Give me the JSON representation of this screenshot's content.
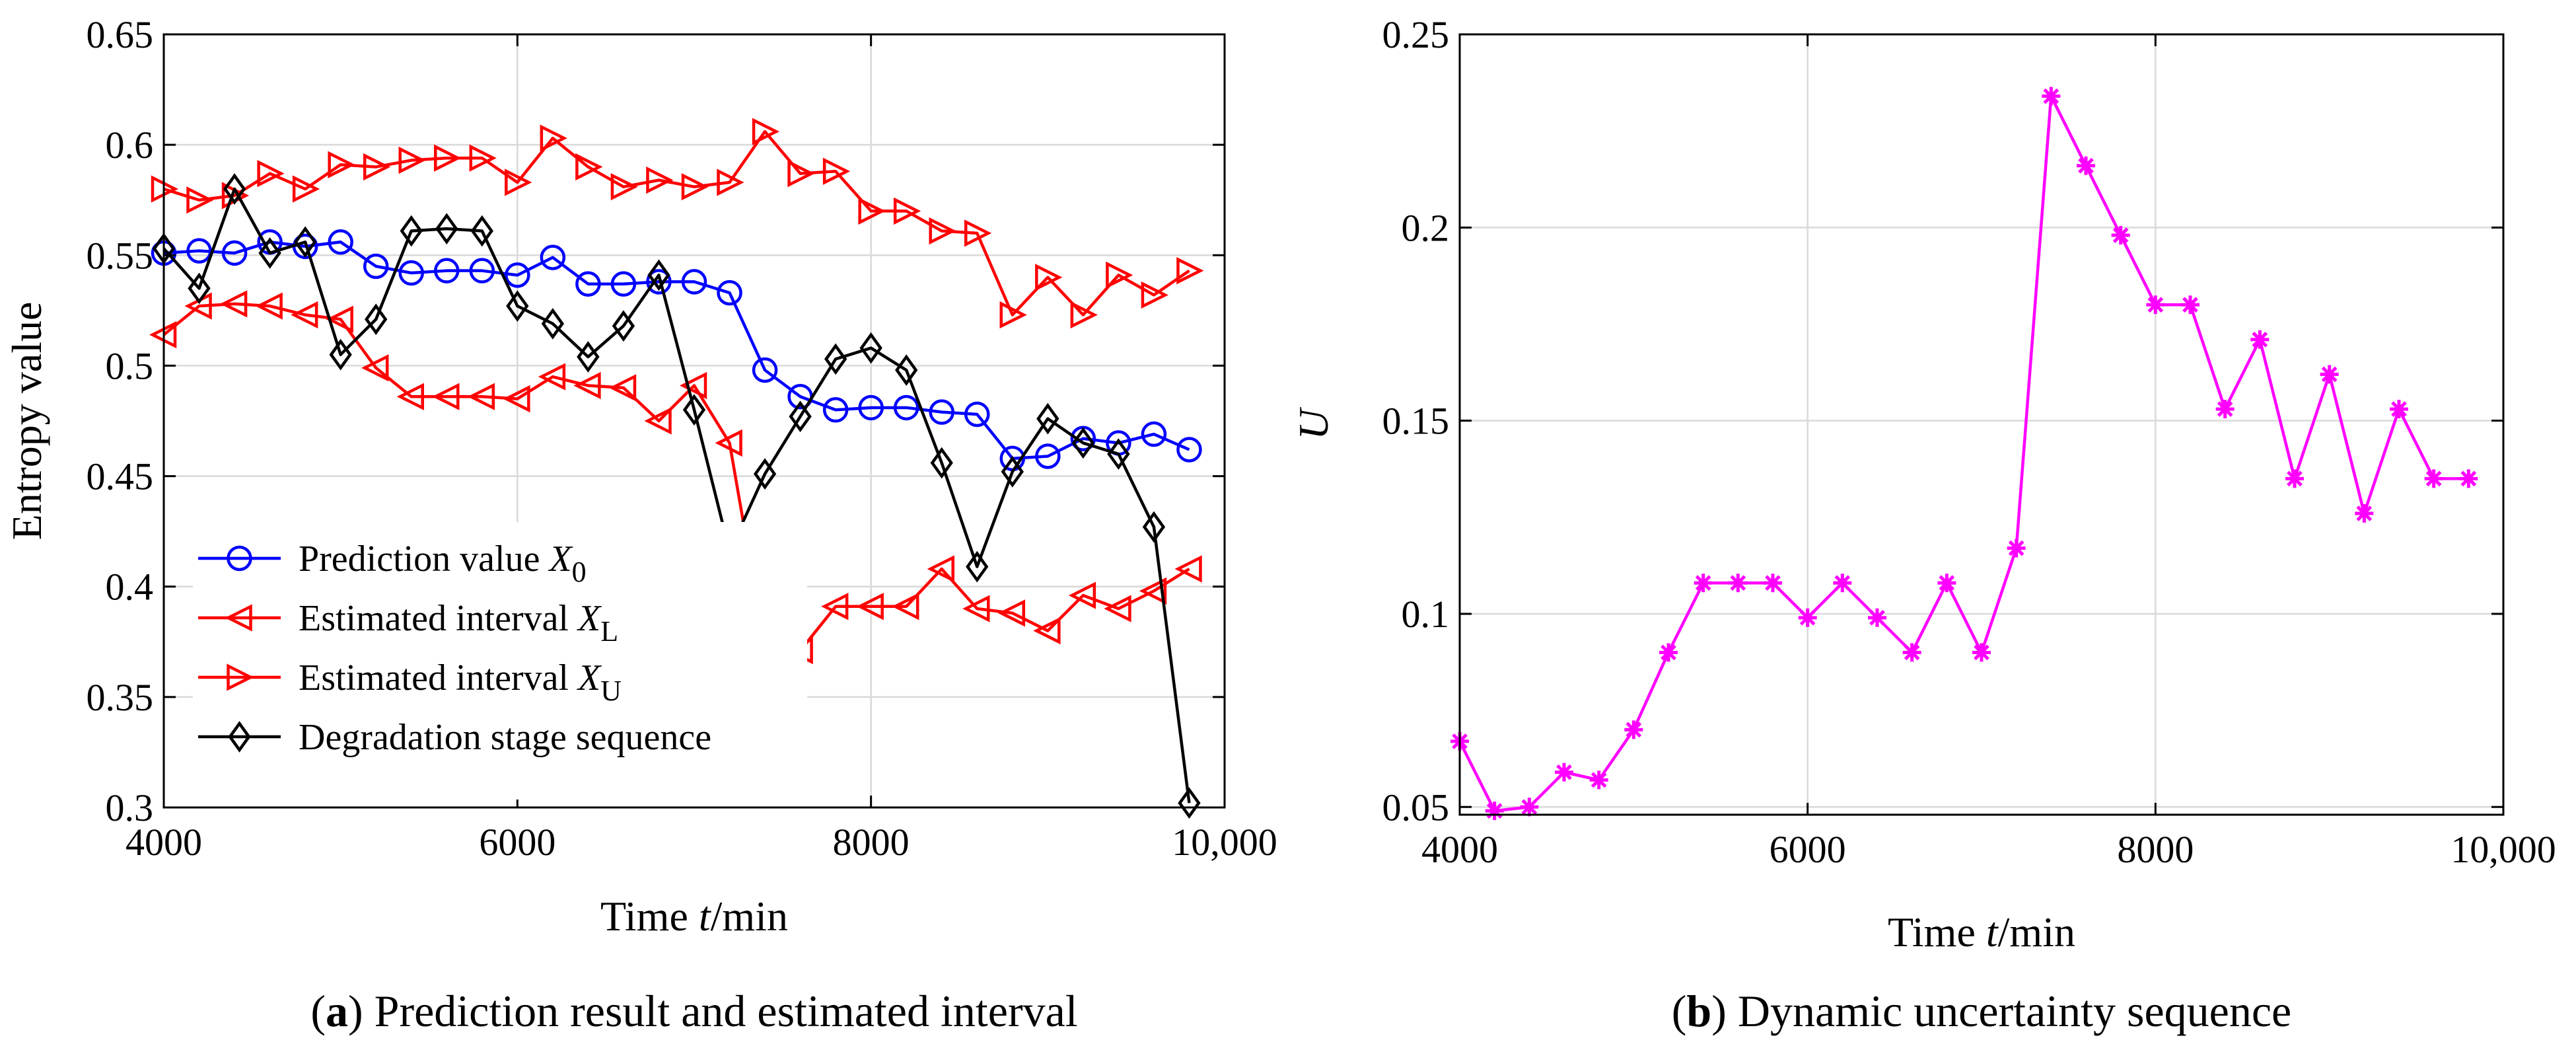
{
  "chart_data": [
    {
      "type": "line",
      "panel_label": "(a)",
      "caption": "Prediction result and estimated interval",
      "xlabel": {
        "prefix": "Time ",
        "var": "t",
        "suffix": "/min"
      },
      "ylabel": "Entropy value",
      "xlim": [
        4000,
        10000
      ],
      "ylim": [
        0.3,
        0.65
      ],
      "xticks": [
        4000,
        6000,
        8000,
        10000
      ],
      "xtick_labels": [
        "4000",
        "6000",
        "8000",
        "10,000"
      ],
      "yticks": [
        0.3,
        0.35,
        0.4,
        0.45,
        0.5,
        0.55,
        0.6,
        0.65
      ],
      "ytick_labels": [
        "0.3",
        "0.35",
        "0.4",
        "0.45",
        "0.5",
        "0.55",
        "0.6",
        "0.65"
      ],
      "grid": true,
      "legend_position": "lower-left",
      "x": [
        4000,
        4200,
        4400,
        4600,
        4800,
        5000,
        5200,
        5400,
        5600,
        5800,
        6000,
        6200,
        6400,
        6600,
        6800,
        7000,
        7200,
        7400,
        7600,
        7800,
        8000,
        8200,
        8400,
        8600,
        8800,
        9000,
        9200,
        9400,
        9600,
        9800
      ],
      "series": [
        {
          "name": "Prediction value",
          "legend_main": "Prediction value ",
          "legend_var": "X",
          "legend_sub": "0",
          "color": "#0000ff",
          "marker": "circle",
          "values": [
            0.551,
            0.552,
            0.551,
            0.556,
            0.554,
            0.556,
            0.545,
            0.542,
            0.543,
            0.543,
            0.541,
            0.549,
            0.537,
            0.537,
            0.538,
            0.538,
            0.533,
            0.498,
            0.486,
            0.48,
            0.481,
            0.481,
            0.479,
            0.478,
            0.458,
            0.459,
            0.467,
            0.465,
            0.469,
            0.462
          ]
        },
        {
          "name": "Estimated interval",
          "legend_main": "Estimated interval ",
          "legend_var": "X",
          "legend_sub": "L",
          "color": "#ff0000",
          "marker": "triangle-left",
          "values": [
            0.514,
            0.527,
            0.528,
            0.527,
            0.523,
            0.521,
            0.499,
            0.486,
            0.486,
            0.486,
            0.485,
            0.495,
            0.491,
            0.49,
            0.475,
            0.491,
            0.465,
            0.373,
            0.371,
            0.391,
            0.391,
            0.391,
            0.408,
            0.39,
            0.388,
            0.38,
            0.396,
            0.39,
            0.398,
            0.408
          ]
        },
        {
          "name": "Estimated interval",
          "legend_main": "Estimated interval ",
          "legend_var": "X",
          "legend_sub": "U",
          "color": "#ff0000",
          "marker": "triangle-right",
          "values": [
            0.58,
            0.575,
            0.577,
            0.587,
            0.58,
            0.591,
            0.59,
            0.593,
            0.594,
            0.594,
            0.583,
            0.603,
            0.59,
            0.581,
            0.584,
            0.581,
            0.583,
            0.606,
            0.587,
            0.588,
            0.57,
            0.57,
            0.561,
            0.56,
            0.523,
            0.54,
            0.523,
            0.541,
            0.532,
            0.543
          ]
        },
        {
          "name": "Degradation stage sequence",
          "legend_main": "Degradation stage sequence",
          "legend_var": "",
          "legend_sub": "",
          "color": "#000000",
          "marker": "diamond",
          "values": [
            0.553,
            0.535,
            0.58,
            0.551,
            0.556,
            0.505,
            0.521,
            0.561,
            0.562,
            0.561,
            0.527,
            0.519,
            0.504,
            0.518,
            0.541,
            0.48,
            0.416,
            0.451,
            0.477,
            0.503,
            0.508,
            0.498,
            0.456,
            0.409,
            0.452,
            0.476,
            0.465,
            0.46,
            0.427,
            0.302
          ]
        }
      ]
    },
    {
      "type": "line",
      "panel_label": "(b)",
      "caption": "Dynamic uncertainty sequence",
      "xlabel": {
        "prefix": "Time ",
        "var": "t",
        "suffix": "/min"
      },
      "ylabel": "U",
      "xlim": [
        4000,
        10000
      ],
      "ylim": [
        0.048,
        0.25
      ],
      "xticks": [
        4000,
        6000,
        8000,
        10000
      ],
      "xtick_labels": [
        "4000",
        "6000",
        "8000",
        "10,000"
      ],
      "yticks": [
        0.05,
        0.1,
        0.15,
        0.2,
        0.25
      ],
      "ytick_labels": [
        "0.05",
        "0.1",
        "0.15",
        "0.2",
        "0.25"
      ],
      "grid": true,
      "x": [
        4000,
        4200,
        4400,
        4600,
        4800,
        5000,
        5200,
        5400,
        5600,
        5800,
        6000,
        6200,
        6400,
        6600,
        6800,
        7000,
        7200,
        7400,
        7600,
        7800,
        8000,
        8200,
        8400,
        8600,
        8800,
        9000,
        9200,
        9400,
        9600,
        9800
      ],
      "series": [
        {
          "color": "#ff00ff",
          "marker": "asterisk",
          "values": [
            0.067,
            0.049,
            0.05,
            0.059,
            0.057,
            0.07,
            0.09,
            0.108,
            0.108,
            0.108,
            0.099,
            0.108,
            0.099,
            0.09,
            0.108,
            0.09,
            0.117,
            0.234,
            0.216,
            0.198,
            0.18,
            0.18,
            0.153,
            0.171,
            0.135,
            0.162,
            0.126,
            0.153,
            0.135,
            0.135
          ]
        }
      ]
    }
  ]
}
